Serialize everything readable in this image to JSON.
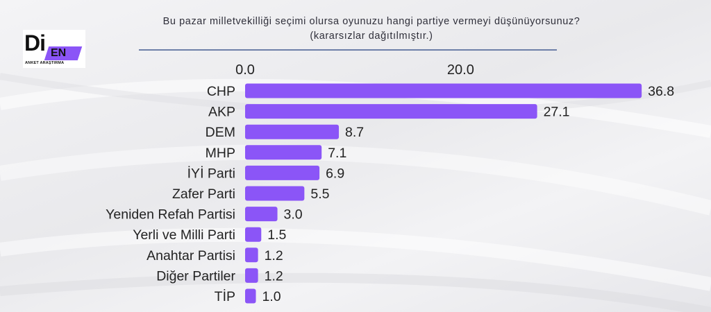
{
  "header": {
    "title_line1": "Bu pazar milletvekilliği seçimi olursa oyunuzu hangi partiye vermeyi düşünüyorsunuz?",
    "title_line2": "(kararsızlar dağıtılmıştır.)"
  },
  "logo": {
    "main": "Di",
    "badge": "EN",
    "subtitle": "ANKET ARAŞTIRMA",
    "badge_color": "#8b55f7"
  },
  "chart_data": {
    "type": "bar",
    "orientation": "horizontal",
    "title": "Bu pazar milletvekilliği seçimi olursa oyunuzu hangi partiye vermeyi düşünüyorsunuz?",
    "subtitle": "(kararsızlar dağıtılmıştır.)",
    "categories": [
      "CHP",
      "AKP",
      "DEM",
      "MHP",
      "İYİ Parti",
      "Zafer Parti",
      "Yeniden Refah Partisi",
      "Yerli ve Milli Parti",
      "Anahtar Partisi",
      "Diğer Partiler",
      "TİP"
    ],
    "values": [
      36.8,
      27.1,
      8.7,
      7.1,
      6.9,
      5.5,
      3.0,
      1.5,
      1.2,
      1.2,
      1.0
    ],
    "value_labels": [
      "36.8",
      "27.1",
      "8.7",
      "7.1",
      "6.9",
      "5.5",
      "3.0",
      "1.5",
      "1.2",
      "1.2",
      "1.0"
    ],
    "xticks": [
      0,
      20
    ],
    "xtick_labels": [
      "0.0",
      "20.0"
    ],
    "xlim": [
      0,
      37.5
    ],
    "axis_position": "top",
    "grid": false,
    "bar_color": "#8b55f7"
  }
}
